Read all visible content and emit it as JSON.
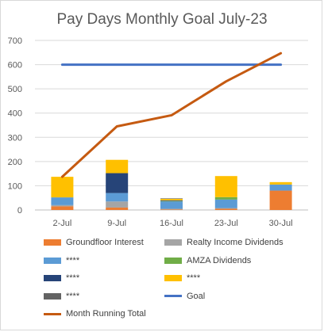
{
  "chart_data": {
    "type": "bar",
    "stacked": true,
    "title": "Pay Days Monthly Goal July-23",
    "categories": [
      "2-Jul",
      "9-Jul",
      "16-Jul",
      "23-Jul",
      "30-Jul"
    ],
    "yticks": [
      "0",
      "100",
      "200",
      "300",
      "400",
      "500",
      "600",
      "700"
    ],
    "ylim": [
      0,
      700
    ],
    "grid": true,
    "legend_position": "bottom",
    "series": [
      {
        "name": "Groundfloor Interest",
        "color": "#ed7d31",
        "values": [
          15,
          10,
          2,
          5,
          80
        ]
      },
      {
        "name": "Realty Income Dividends",
        "color": "#a5a5a5",
        "values": [
          5,
          25,
          3,
          3,
          0
        ]
      },
      {
        "name": "****",
        "color": "#5b9bd5",
        "values": [
          32,
          35,
          30,
          35,
          25
        ]
      },
      {
        "name": "AMZA Dividends",
        "color": "#70ad47",
        "values": [
          0,
          0,
          2,
          10,
          0
        ]
      },
      {
        "name": "****",
        "color": "#264478",
        "values": [
          0,
          82,
          3,
          0,
          0
        ]
      },
      {
        "name": "****",
        "color": "#ffc000",
        "values": [
          85,
          55,
          6,
          87,
          10
        ]
      },
      {
        "name": "****",
        "color": "#636363",
        "values": [
          0,
          0,
          2,
          0,
          0
        ]
      }
    ],
    "lines": [
      {
        "name": "Goal",
        "color": "#4472c4",
        "values": [
          600,
          600,
          600,
          600,
          600
        ]
      },
      {
        "name": "Month Running Total",
        "color": "#c55a11",
        "values": [
          137,
          345,
          391,
          531,
          647
        ]
      }
    ]
  }
}
